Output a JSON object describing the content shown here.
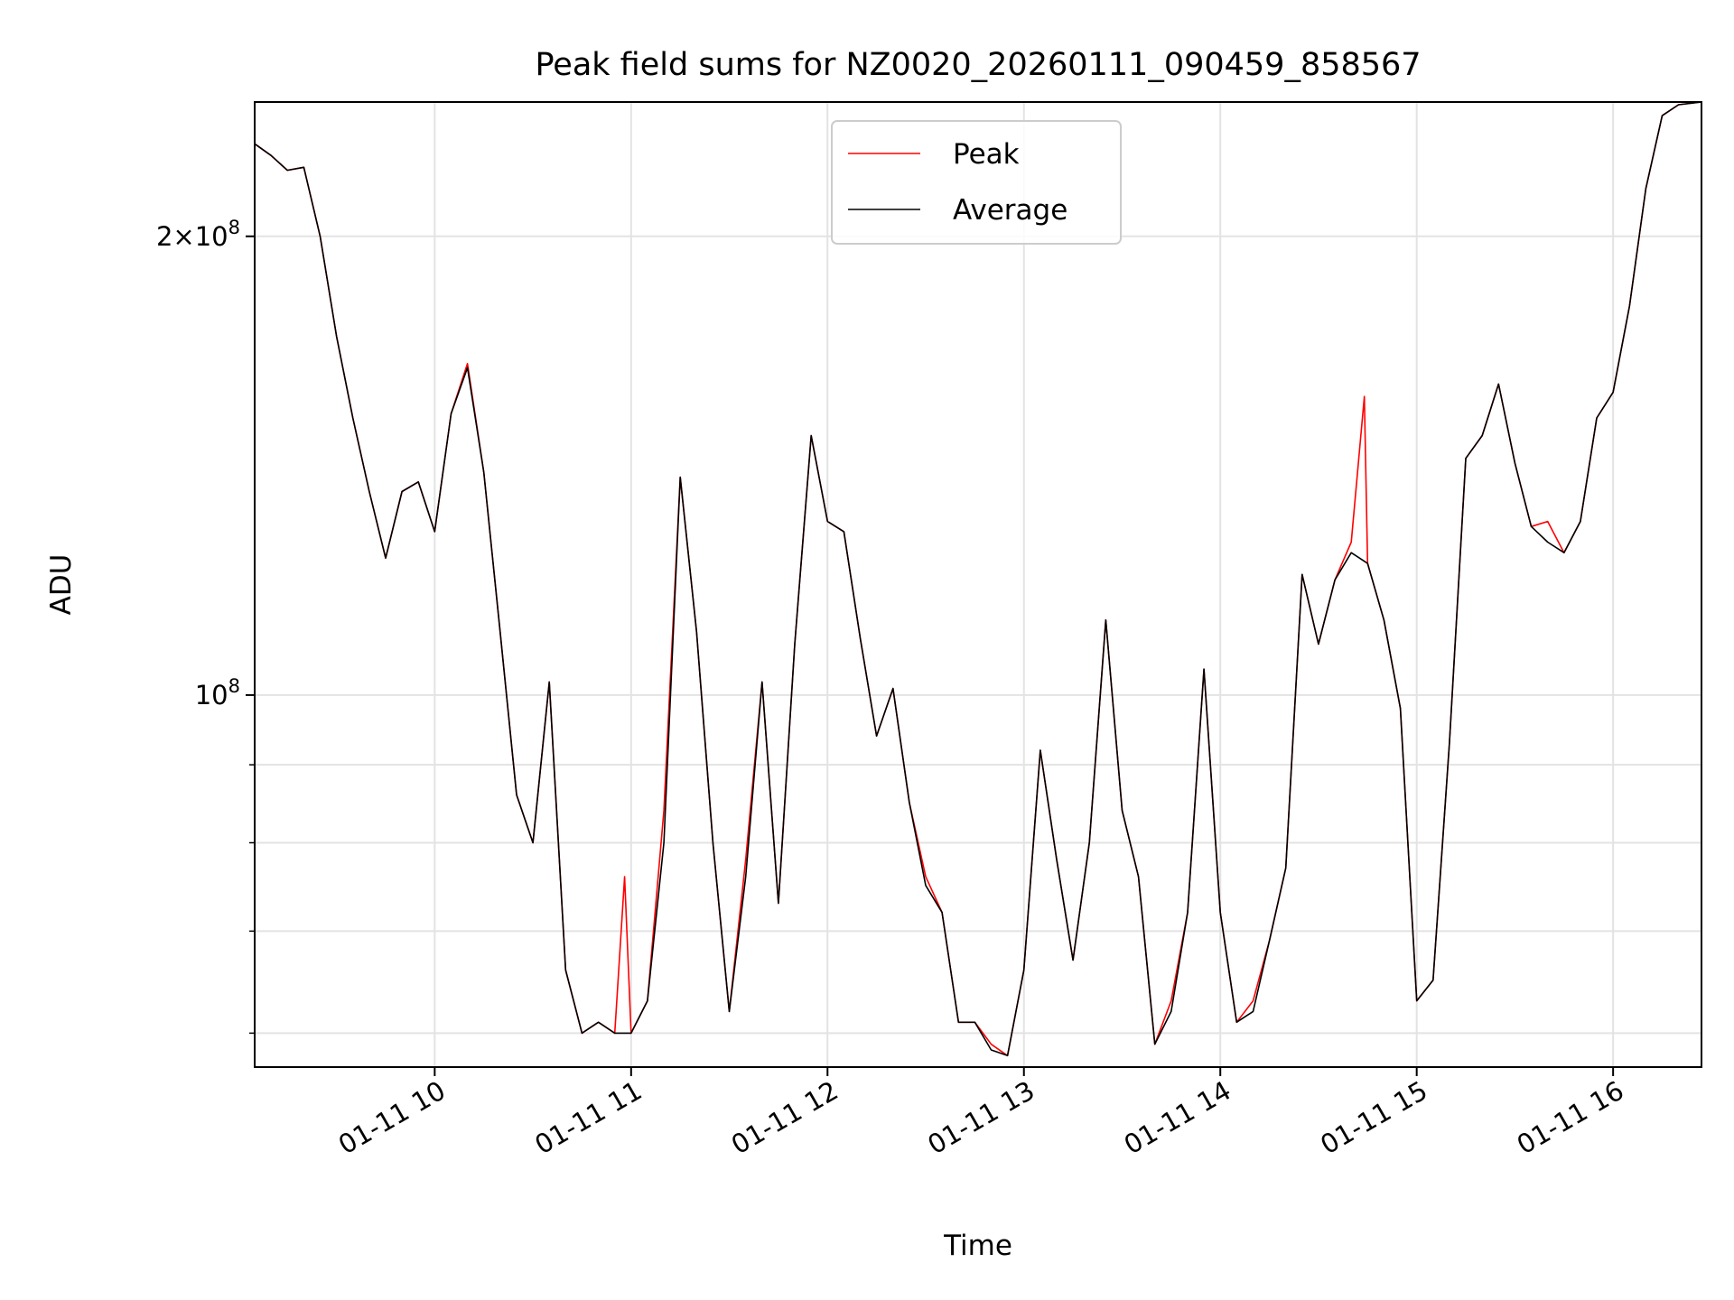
{
  "chart_data": {
    "type": "line",
    "title": "Peak field sums for NZ0020_20260111_090459_858567",
    "xlabel": "Time",
    "ylabel": "ADU",
    "yscale": "log",
    "grid": true,
    "legend_position": "top-center",
    "xlim": [
      "01-11 09:05",
      "01-11 16:27"
    ],
    "ylim": [
      57000000,
      245000000
    ],
    "x_ticks": [
      {
        "time": "01-11 10:00",
        "label": "01-11 10"
      },
      {
        "time": "01-11 11:00",
        "label": "01-11 11"
      },
      {
        "time": "01-11 12:00",
        "label": "01-11 12"
      },
      {
        "time": "01-11 13:00",
        "label": "01-11 13"
      },
      {
        "time": "01-11 14:00",
        "label": "01-11 14"
      },
      {
        "time": "01-11 15:00",
        "label": "01-11 15"
      },
      {
        "time": "01-11 16:00",
        "label": "01-11 16"
      }
    ],
    "y_major_ticks": [
      {
        "value": 100000000,
        "base": "10",
        "exp": "8",
        "coef": ""
      },
      {
        "value": 200000000,
        "base": "10",
        "exp": "8",
        "coef": "2×"
      }
    ],
    "y_minor_ticks": [
      60000000,
      70000000,
      80000000,
      90000000
    ],
    "series": [
      {
        "name": "Peak",
        "color": "#ff0000",
        "x": [
          "01-11 09:05",
          "01-11 09:10",
          "01-11 09:15",
          "01-11 09:20",
          "01-11 09:25",
          "01-11 09:30",
          "01-11 09:35",
          "01-11 09:40",
          "01-11 09:45",
          "01-11 09:50",
          "01-11 09:55",
          "01-11 10:00",
          "01-11 10:05",
          "01-11 10:10",
          "01-11 10:15",
          "01-11 10:20",
          "01-11 10:25",
          "01-11 10:30",
          "01-11 10:35",
          "01-11 10:40",
          "01-11 10:45",
          "01-11 10:50",
          "01-11 10:55",
          "01-11 10:58",
          "01-11 11:00",
          "01-11 11:05",
          "01-11 11:10",
          "01-11 11:15",
          "01-11 11:20",
          "01-11 11:25",
          "01-11 11:30",
          "01-11 11:35",
          "01-11 11:40",
          "01-11 11:45",
          "01-11 11:50",
          "01-11 11:55",
          "01-11 12:00",
          "01-11 12:05",
          "01-11 12:10",
          "01-11 12:15",
          "01-11 12:20",
          "01-11 12:25",
          "01-11 12:30",
          "01-11 12:35",
          "01-11 12:40",
          "01-11 12:45",
          "01-11 12:50",
          "01-11 12:55",
          "01-11 13:00",
          "01-11 13:05",
          "01-11 13:10",
          "01-11 13:15",
          "01-11 13:20",
          "01-11 13:25",
          "01-11 13:30",
          "01-11 13:35",
          "01-11 13:40",
          "01-11 13:45",
          "01-11 13:50",
          "01-11 13:55",
          "01-11 14:00",
          "01-11 14:05",
          "01-11 14:10",
          "01-11 14:15",
          "01-11 14:20",
          "01-11 14:25",
          "01-11 14:30",
          "01-11 14:35",
          "01-11 14:40",
          "01-11 14:44",
          "01-11 14:45",
          "01-11 14:50",
          "01-11 14:55",
          "01-11 15:00",
          "01-11 15:05",
          "01-11 15:10",
          "01-11 15:15",
          "01-11 15:20",
          "01-11 15:25",
          "01-11 15:30",
          "01-11 15:35",
          "01-11 15:40",
          "01-11 15:45",
          "01-11 15:50",
          "01-11 15:55",
          "01-11 16:00",
          "01-11 16:05",
          "01-11 16:10",
          "01-11 16:15",
          "01-11 16:20",
          "01-11 16:27"
        ],
        "values": [
          230000000,
          226000000,
          221000000,
          222000000,
          200000000,
          172000000,
          152000000,
          136000000,
          123000000,
          136000000,
          138000000,
          128000000,
          153000000,
          165000000,
          140000000,
          110000000,
          86000000,
          80000000,
          102000000,
          66000000,
          60000000,
          61000000,
          60000000,
          76000000,
          60000000,
          63000000,
          84000000,
          139000000,
          110000000,
          80000000,
          62000000,
          78000000,
          102000000,
          73000000,
          108000000,
          148000000,
          130000000,
          128000000,
          109000000,
          94000000,
          101000000,
          85000000,
          76000000,
          72000000,
          61000000,
          61000000,
          59000000,
          58000000,
          66000000,
          92000000,
          78000000,
          67000000,
          80000000,
          112000000,
          84000000,
          76000000,
          59000000,
          63000000,
          72000000,
          104000000,
          72000000,
          61000000,
          63000000,
          69000000,
          77000000,
          120000000,
          108000000,
          119000000,
          126000000,
          157000000,
          122000000,
          112000000,
          98000000,
          63000000,
          65000000,
          93000000,
          143000000,
          148000000,
          160000000,
          142000000,
          129000000,
          130000000,
          124000000,
          130000000,
          152000000,
          158000000,
          180000000,
          215000000,
          240000000,
          244000000,
          245000000
        ]
      },
      {
        "name": "Average",
        "color": "#000000",
        "x": [
          "01-11 09:05",
          "01-11 09:10",
          "01-11 09:15",
          "01-11 09:20",
          "01-11 09:25",
          "01-11 09:30",
          "01-11 09:35",
          "01-11 09:40",
          "01-11 09:45",
          "01-11 09:50",
          "01-11 09:55",
          "01-11 10:00",
          "01-11 10:05",
          "01-11 10:10",
          "01-11 10:15",
          "01-11 10:20",
          "01-11 10:25",
          "01-11 10:30",
          "01-11 10:35",
          "01-11 10:40",
          "01-11 10:45",
          "01-11 10:50",
          "01-11 10:55",
          "01-11 11:00",
          "01-11 11:05",
          "01-11 11:10",
          "01-11 11:15",
          "01-11 11:20",
          "01-11 11:25",
          "01-11 11:30",
          "01-11 11:35",
          "01-11 11:40",
          "01-11 11:45",
          "01-11 11:50",
          "01-11 11:55",
          "01-11 12:00",
          "01-11 12:05",
          "01-11 12:10",
          "01-11 12:15",
          "01-11 12:20",
          "01-11 12:25",
          "01-11 12:30",
          "01-11 12:35",
          "01-11 12:40",
          "01-11 12:45",
          "01-11 12:50",
          "01-11 12:55",
          "01-11 13:00",
          "01-11 13:05",
          "01-11 13:10",
          "01-11 13:15",
          "01-11 13:20",
          "01-11 13:25",
          "01-11 13:30",
          "01-11 13:35",
          "01-11 13:40",
          "01-11 13:45",
          "01-11 13:50",
          "01-11 13:55",
          "01-11 14:00",
          "01-11 14:05",
          "01-11 14:10",
          "01-11 14:15",
          "01-11 14:20",
          "01-11 14:25",
          "01-11 14:30",
          "01-11 14:35",
          "01-11 14:40",
          "01-11 14:45",
          "01-11 14:50",
          "01-11 14:55",
          "01-11 15:00",
          "01-11 15:05",
          "01-11 15:10",
          "01-11 15:15",
          "01-11 15:20",
          "01-11 15:25",
          "01-11 15:30",
          "01-11 15:35",
          "01-11 15:40",
          "01-11 15:45",
          "01-11 15:50",
          "01-11 15:55",
          "01-11 16:00",
          "01-11 16:05",
          "01-11 16:10",
          "01-11 16:15",
          "01-11 16:20",
          "01-11 16:27"
        ],
        "values": [
          230000000,
          226000000,
          221000000,
          222000000,
          200000000,
          172000000,
          152000000,
          136000000,
          123000000,
          136000000,
          138000000,
          128000000,
          153000000,
          164000000,
          140000000,
          110000000,
          86000000,
          80000000,
          102000000,
          66000000,
          60000000,
          61000000,
          60000000,
          60000000,
          63000000,
          80000000,
          139000000,
          110000000,
          80000000,
          62000000,
          76000000,
          102000000,
          73000000,
          108000000,
          148000000,
          130000000,
          128000000,
          109000000,
          94000000,
          101000000,
          85000000,
          75000000,
          72000000,
          61000000,
          61000000,
          58500000,
          58000000,
          66000000,
          92000000,
          78000000,
          67000000,
          80000000,
          112000000,
          84000000,
          76000000,
          59000000,
          62000000,
          72000000,
          104000000,
          72000000,
          61000000,
          62000000,
          69000000,
          77000000,
          120000000,
          108000000,
          119000000,
          124000000,
          122000000,
          112000000,
          98000000,
          63000000,
          65000000,
          93000000,
          143000000,
          148000000,
          160000000,
          142000000,
          129000000,
          126000000,
          124000000,
          130000000,
          152000000,
          158000000,
          180000000,
          215000000,
          240000000,
          244000000,
          245000000
        ]
      }
    ]
  }
}
